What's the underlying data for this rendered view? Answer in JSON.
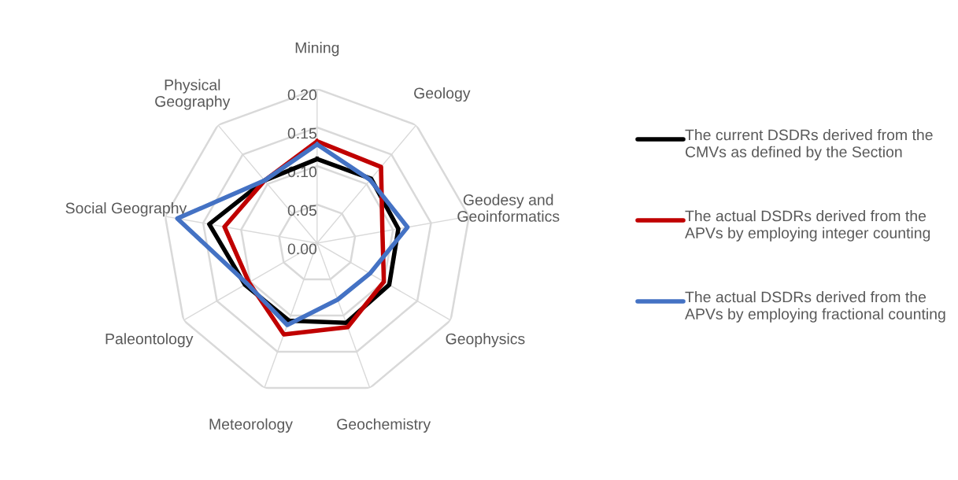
{
  "chart_data": {
    "type": "radar",
    "categories": [
      "Mining",
      "Geology",
      "Geodesy and\nGeoinformatics",
      "Geophysics",
      "Geochemistry",
      "Meteorology",
      "Paleontology",
      "Social Geography",
      "Physical\nGeography"
    ],
    "series": [
      {
        "name": "The current DSDRs derived from the CMVs as defined by the Section",
        "color": "#000000",
        "values": [
          0.109,
          0.109,
          0.107,
          0.108,
          0.11,
          0.107,
          0.108,
          0.142,
          0.106
        ]
      },
      {
        "name": "The actual DSDRs derived from the APVs by employing integer counting",
        "color": "#c00000",
        "values": [
          0.132,
          0.129,
          0.086,
          0.1,
          0.116,
          0.126,
          0.102,
          0.122,
          0.106
        ]
      },
      {
        "name": "The actual DSDRs derived from the APVs by employing fractional counting",
        "color": "#4472c4",
        "values": [
          0.128,
          0.107,
          0.119,
          0.079,
          0.078,
          0.113,
          0.105,
          0.184,
          0.106
        ]
      }
    ],
    "ylim": [
      0,
      0.2
    ],
    "yticks": [
      {
        "value": 0,
        "label": "0.00"
      },
      {
        "value": 0.05,
        "label": "0.05"
      },
      {
        "value": 0.1,
        "label": "0.10"
      },
      {
        "value": 0.15,
        "label": "0.15"
      },
      {
        "value": 0.2,
        "label": "0.20"
      }
    ],
    "grid": true,
    "legend": "right",
    "line_style": "solid"
  }
}
